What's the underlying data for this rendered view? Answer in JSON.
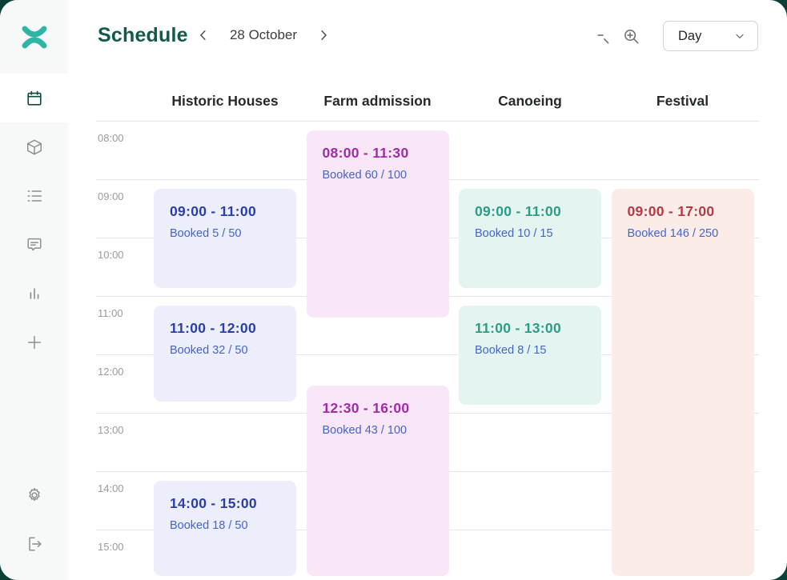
{
  "window": {
    "backdrop_color": "#0C4037",
    "accent_color": "#2FB5A6"
  },
  "sidebar": {
    "logo_icon": "brand-x-mark",
    "nav_icons": [
      "calendar",
      "package",
      "list",
      "chat",
      "bar-chart",
      "plus"
    ],
    "active_icon": "calendar",
    "bottom_icons": [
      "settings",
      "logout"
    ]
  },
  "header": {
    "title": "Schedule",
    "prev_icon": "chevron-left",
    "date": "28 October",
    "next_icon": "chevron-right",
    "zoom_out_icon": "magnifier-minus",
    "zoom_in_icon": "magnifier-plus",
    "view_selector": {
      "value": "Day",
      "chevron": "chevron-down"
    }
  },
  "schedule": {
    "time_labels": [
      "08:00",
      "09:00",
      "10:00",
      "11:00",
      "12:00",
      "13:00",
      "14:00",
      "15:00"
    ],
    "booked_text_color": "#4565C8",
    "gridline_color": "#E5E6E5",
    "columns": [
      {
        "label": "Historic Houses",
        "event_bg": "#ECEFFB",
        "event_title_color": "#2B3EA7",
        "events": [
          {
            "time_range": "09:00 - 11:00",
            "booked": "Booked 5 / 50"
          },
          {
            "time_range": "11:00 - 12:00",
            "booked": "Booked 32 / 50"
          },
          {
            "time_range": "14:00 - 15:00",
            "booked": "Booked 18 / 50"
          }
        ]
      },
      {
        "label": "Farm admission",
        "event_bg": "#F9E7F8",
        "event_title_color": "#A32AA8",
        "events": [
          {
            "time_range": "08:00 - 11:30",
            "booked": "Booked 60 / 100"
          },
          {
            "time_range": "12:30 - 16:00",
            "booked": "Booked 43 / 100"
          }
        ]
      },
      {
        "label": "Canoeing",
        "event_bg": "#E3F4F1",
        "event_title_color": "#2D9C86",
        "events": [
          {
            "time_range": "09:00 - 11:00",
            "booked": "Booked 10 / 15"
          },
          {
            "time_range": "11:00 - 13:00",
            "booked": "Booked 8 / 15"
          }
        ]
      },
      {
        "label": "Festival",
        "event_bg": "#FBECE8",
        "event_title_color": "#B13B47",
        "events": [
          {
            "time_range": "09:00 - 17:00",
            "booked": "Booked 146 / 250"
          }
        ]
      }
    ]
  }
}
